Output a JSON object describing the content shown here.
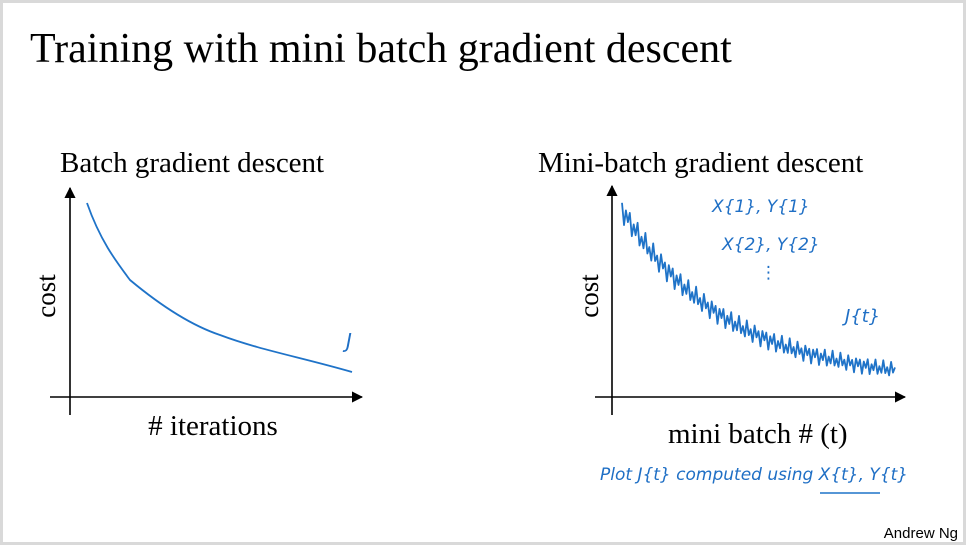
{
  "title": "Training with mini batch gradient descent",
  "left_panel": {
    "title": "Batch gradient descent",
    "y_label": "cost",
    "x_label": "# iterations",
    "annotation": "J"
  },
  "right_panel": {
    "title": "Mini-batch gradient descent",
    "y_label": "cost",
    "x_label": "mini batch # (t)",
    "annotations": [
      "X{1}, Y{1}",
      "X{2}, Y{2}",
      "⋮",
      "J{t}"
    ],
    "note": "Plot J{t} computed using X{t}, Y{t}"
  },
  "footer": "Andrew Ng"
}
